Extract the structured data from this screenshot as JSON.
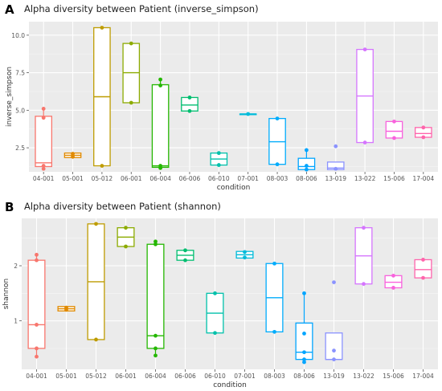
{
  "panels": [
    {
      "letter": "A",
      "title": "Alpha diversity between Patient (inverse_simpson)"
    },
    {
      "letter": "B",
      "title": "Alpha diversity between Patient (shannon)"
    }
  ],
  "chart_data": [
    {
      "type": "box",
      "title": "Alpha diversity between Patient (inverse_simpson)",
      "xlabel": "condition",
      "ylabel": "inverse_simpson",
      "categories": [
        "04-001",
        "05-001",
        "05-012",
        "06-001",
        "06-004",
        "06-006",
        "06-010",
        "07-001",
        "08-003",
        "08-006",
        "13-019",
        "13-022",
        "15-006",
        "17-004"
      ],
      "colors": [
        "#F8766D",
        "#E18A00",
        "#BE9C00",
        "#8CAB00",
        "#24B700",
        "#00BE70",
        "#00C1AB",
        "#00BBDA",
        "#00ACFC",
        "#00A5FF",
        "#8B93FF",
        "#D575FE",
        "#F962DD",
        "#FF65AC"
      ],
      "yticks": [
        2.5,
        5.0,
        7.5,
        10.0
      ],
      "ytick_labels": [
        "2.5",
        "5.0",
        "7.5",
        "10.0"
      ],
      "ylim": [
        0.9,
        10.9
      ],
      "grid": true,
      "boxes": [
        {
          "q1": 1.25,
          "median": 1.5,
          "q3": 4.6,
          "whisker_low": 1.1,
          "whisker_high": 5.1,
          "points": [
            5.1,
            4.5,
            1.3,
            1.1
          ]
        },
        {
          "q1": 1.85,
          "median": 2.0,
          "q3": 2.15,
          "whisker_low": 1.85,
          "whisker_high": 2.15,
          "points": [
            2.1,
            1.9
          ]
        },
        {
          "q1": 1.3,
          "median": 5.9,
          "q3": 10.5,
          "whisker_low": 1.3,
          "whisker_high": 10.5,
          "points": [
            10.5,
            1.3
          ]
        },
        {
          "q1": 5.5,
          "median": 7.5,
          "q3": 9.45,
          "whisker_low": 5.5,
          "whisker_high": 9.45,
          "points": [
            9.45,
            5.5
          ]
        },
        {
          "q1": 1.2,
          "median": 1.3,
          "q3": 6.7,
          "whisker_low": 1.15,
          "whisker_high": 7.05,
          "points": [
            7.05,
            6.65,
            1.3,
            1.15
          ]
        },
        {
          "q1": 4.95,
          "median": 5.35,
          "q3": 5.85,
          "whisker_low": 4.95,
          "whisker_high": 5.85,
          "points": [
            5.85,
            4.95
          ]
        },
        {
          "q1": 1.35,
          "median": 1.75,
          "q3": 2.15,
          "whisker_low": 1.35,
          "whisker_high": 2.15,
          "points": [
            2.15,
            1.35
          ]
        },
        {
          "q1": 4.75,
          "median": 4.75,
          "q3": 4.75,
          "whisker_low": 4.75,
          "whisker_high": 4.75,
          "points": [
            4.75
          ]
        },
        {
          "q1": 1.4,
          "median": 2.9,
          "q3": 4.45,
          "whisker_low": 1.4,
          "whisker_high": 4.45,
          "points": [
            4.45,
            1.4
          ]
        },
        {
          "q1": 1.05,
          "median": 1.25,
          "q3": 1.8,
          "whisker_low": 1.05,
          "whisker_high": 2.35,
          "points": [
            2.35,
            1.3,
            1.05
          ]
        },
        {
          "q1": 1.05,
          "median": 1.15,
          "q3": 1.55,
          "whisker_low": 1.05,
          "whisker_high": 1.55,
          "points": [
            2.6,
            1.1
          ]
        },
        {
          "q1": 2.85,
          "median": 5.95,
          "q3": 9.05,
          "whisker_low": 2.85,
          "whisker_high": 9.05,
          "points": [
            9.05,
            2.85
          ]
        },
        {
          "q1": 3.15,
          "median": 3.6,
          "q3": 4.25,
          "whisker_low": 3.15,
          "whisker_high": 4.25,
          "points": [
            4.25,
            3.15
          ]
        },
        {
          "q1": 3.2,
          "median": 3.45,
          "q3": 3.85,
          "whisker_low": 3.2,
          "whisker_high": 3.85,
          "points": [
            3.85,
            3.2
          ]
        }
      ]
    },
    {
      "type": "box",
      "title": "Alpha diversity between Patient (shannon)",
      "xlabel": "condition",
      "ylabel": "shannon",
      "categories": [
        "04-001",
        "05-001",
        "05-012",
        "06-001",
        "06-004",
        "06-006",
        "06-010",
        "07-001",
        "08-003",
        "08-006",
        "13-019",
        "13-022",
        "15-006",
        "17-004"
      ],
      "colors": [
        "#F8766D",
        "#E18A00",
        "#BE9C00",
        "#8CAB00",
        "#24B700",
        "#00BE70",
        "#00C1AB",
        "#00BBDA",
        "#00ACFC",
        "#00A5FF",
        "#8B93FF",
        "#D575FE",
        "#F962DD",
        "#FF65AC"
      ],
      "yticks": [
        1,
        2
      ],
      "ytick_labels": [
        "1",
        "2"
      ],
      "ylim": [
        0.12,
        2.86
      ],
      "grid": true,
      "boxes": [
        {
          "q1": 0.5,
          "median": 0.93,
          "q3": 2.1,
          "whisker_low": 0.35,
          "whisker_high": 2.2,
          "points": [
            2.2,
            2.1,
            0.93,
            0.5,
            0.35
          ]
        },
        {
          "q1": 1.18,
          "median": 1.22,
          "q3": 1.26,
          "whisker_low": 1.18,
          "whisker_high": 1.26,
          "points": [
            1.24,
            1.2
          ]
        },
        {
          "q1": 0.66,
          "median": 1.71,
          "q3": 2.76,
          "whisker_low": 0.66,
          "whisker_high": 2.76,
          "points": [
            2.76,
            0.66
          ]
        },
        {
          "q1": 2.35,
          "median": 2.52,
          "q3": 2.69,
          "whisker_low": 2.35,
          "whisker_high": 2.69,
          "points": [
            2.69,
            2.35
          ]
        },
        {
          "q1": 0.5,
          "median": 0.73,
          "q3": 2.39,
          "whisker_low": 0.37,
          "whisker_high": 2.44,
          "points": [
            2.44,
            2.39,
            0.73,
            0.5,
            0.37
          ]
        },
        {
          "q1": 2.1,
          "median": 2.19,
          "q3": 2.28,
          "whisker_low": 2.1,
          "whisker_high": 2.28,
          "points": [
            2.28,
            2.1
          ]
        },
        {
          "q1": 0.78,
          "median": 1.14,
          "q3": 1.5,
          "whisker_low": 0.78,
          "whisker_high": 1.5,
          "points": [
            1.5,
            0.78
          ]
        },
        {
          "q1": 2.14,
          "median": 2.2,
          "q3": 2.26,
          "whisker_low": 2.14,
          "whisker_high": 2.26,
          "points": [
            2.25,
            2.15
          ]
        },
        {
          "q1": 0.8,
          "median": 1.42,
          "q3": 2.04,
          "whisker_low": 0.8,
          "whisker_high": 2.04,
          "points": [
            2.04,
            0.8
          ]
        },
        {
          "q1": 0.3,
          "median": 0.43,
          "q3": 0.96,
          "whisker_low": 0.25,
          "whisker_high": 1.5,
          "points": [
            1.5,
            0.77,
            0.43,
            0.3,
            0.25
          ]
        },
        {
          "q1": 0.3,
          "median": 0.3,
          "q3": 0.78,
          "whisker_low": 0.3,
          "whisker_high": 0.78,
          "points": [
            1.7,
            0.46,
            0.3
          ]
        },
        {
          "q1": 1.67,
          "median": 2.18,
          "q3": 2.69,
          "whisker_low": 1.67,
          "whisker_high": 2.69,
          "points": [
            2.69,
            1.67
          ]
        },
        {
          "q1": 1.6,
          "median": 1.7,
          "q3": 1.82,
          "whisker_low": 1.6,
          "whisker_high": 1.82,
          "points": [
            1.82,
            1.6
          ]
        },
        {
          "q1": 1.78,
          "median": 1.93,
          "q3": 2.11,
          "whisker_low": 1.78,
          "whisker_high": 2.11,
          "points": [
            2.11,
            1.78
          ]
        }
      ]
    }
  ]
}
